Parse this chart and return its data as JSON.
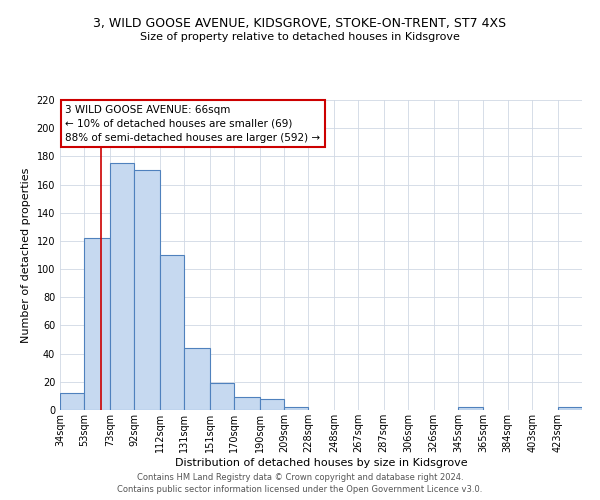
{
  "title_line1": "3, WILD GOOSE AVENUE, KIDSGROVE, STOKE-ON-TRENT, ST7 4XS",
  "title_line2": "Size of property relative to detached houses in Kidsgrove",
  "xlabel": "Distribution of detached houses by size in Kidsgrove",
  "ylabel": "Number of detached properties",
  "bin_labels": [
    "34sqm",
    "53sqm",
    "73sqm",
    "92sqm",
    "112sqm",
    "131sqm",
    "151sqm",
    "170sqm",
    "190sqm",
    "209sqm",
    "228sqm",
    "248sqm",
    "267sqm",
    "287sqm",
    "306sqm",
    "326sqm",
    "345sqm",
    "365sqm",
    "384sqm",
    "403sqm",
    "423sqm"
  ],
  "bar_values": [
    12,
    122,
    175,
    170,
    110,
    44,
    19,
    9,
    8,
    2,
    0,
    0,
    0,
    0,
    0,
    0,
    2,
    0,
    0,
    0,
    2
  ],
  "bar_color": "#c6d9f0",
  "bar_edge_color": "#4f81bd",
  "property_line_x": 66,
  "bin_edges": [
    34,
    53,
    73,
    92,
    112,
    131,
    151,
    170,
    190,
    209,
    228,
    248,
    267,
    287,
    306,
    326,
    345,
    365,
    384,
    403,
    423,
    442
  ],
  "ylim": [
    0,
    220
  ],
  "yticks": [
    0,
    20,
    40,
    60,
    80,
    100,
    120,
    140,
    160,
    180,
    200,
    220
  ],
  "annotation_line1": "3 WILD GOOSE AVENUE: 66sqm",
  "annotation_line2": "← 10% of detached houses are smaller (69)",
  "annotation_line3": "88% of semi-detached houses are larger (592) →",
  "footer_line1": "Contains HM Land Registry data © Crown copyright and database right 2024.",
  "footer_line2": "Contains public sector information licensed under the Open Government Licence v3.0.",
  "red_line_color": "#cc0000",
  "box_edge_color": "#cc0000",
  "background_color": "#ffffff",
  "grid_color": "#d0d8e4",
  "title1_fontsize": 9,
  "title2_fontsize": 8,
  "axis_label_fontsize": 8,
  "tick_fontsize": 7,
  "annot_fontsize": 7.5,
  "footer_fontsize": 6
}
